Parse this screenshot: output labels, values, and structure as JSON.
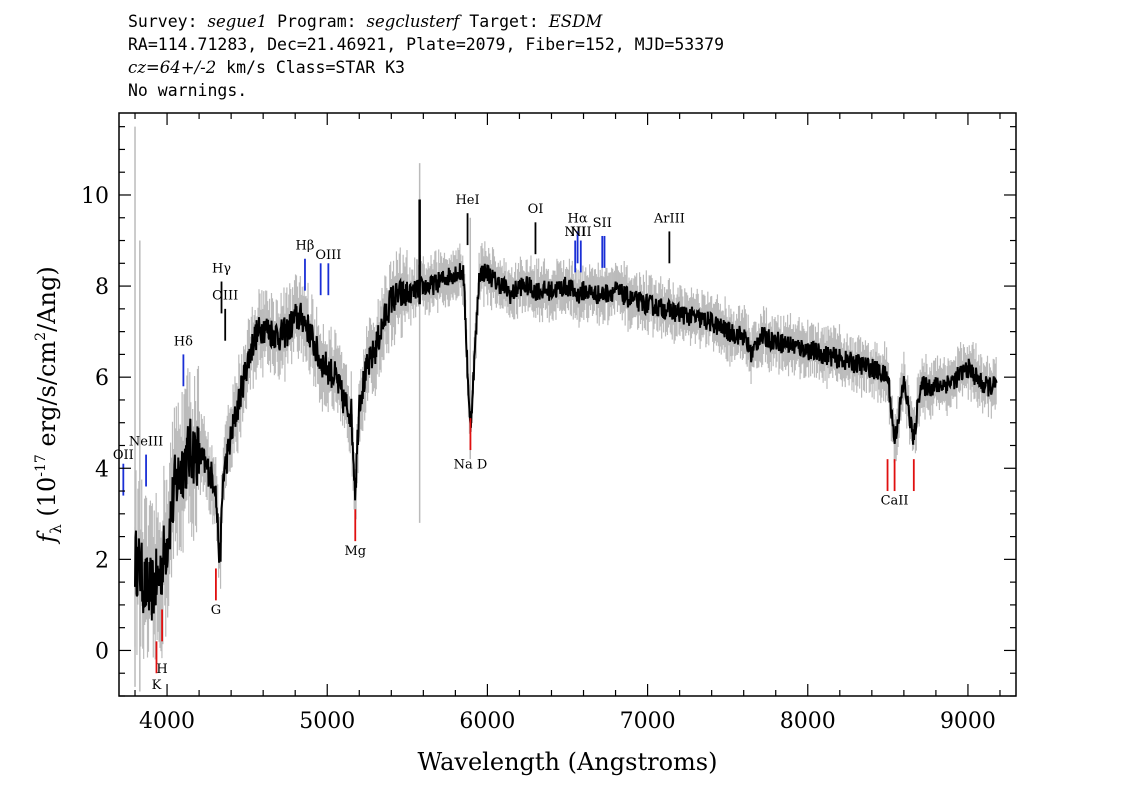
{
  "header": {
    "survey_label": "Survey:",
    "survey": "segue1",
    "program_label": "Program:",
    "program": "segclusterf",
    "target_label": "Target:",
    "target": "ESDM",
    "line2": "RA=114.71283, Dec=21.46921, Plate=2079, Fiber=152, MJD=53379",
    "cz_label": "cz=64+/-2",
    "line3_rest": "km/s Class=STAR K3",
    "line4": "No warnings."
  },
  "chart_data": {
    "type": "line",
    "title": "",
    "xlabel": "Wavelength (Angstroms)",
    "ylabel": "f_λ (10^-17 erg/s/cm^2/Ang)",
    "ylabel_parts": {
      "f": "f",
      "sub": "λ",
      "pre": " (10",
      "exp": "-17",
      "mid": " erg/s/cm",
      "exp2": "2",
      "post": "/Ang)"
    },
    "xlim": [
      3700,
      9300
    ],
    "ylim": [
      -1.0,
      11.8
    ],
    "xticks": [
      4000,
      5000,
      6000,
      7000,
      8000,
      9000
    ],
    "yticks": [
      0,
      2,
      4,
      6,
      8,
      10
    ],
    "grid": false,
    "colors": {
      "flux": "#000000",
      "error": "#bbbbbb",
      "emission": "#1a2fd6",
      "absorption": "#e01010",
      "sky": "#000000"
    },
    "spectrum": {
      "x": [
        3800,
        3830,
        3860,
        3900,
        3950,
        4000,
        4050,
        4100,
        4150,
        4200,
        4250,
        4300,
        4330,
        4350,
        4400,
        4450,
        4500,
        4550,
        4600,
        4650,
        4700,
        4750,
        4800,
        4850,
        4900,
        4950,
        5000,
        5050,
        5100,
        5150,
        5175,
        5200,
        5250,
        5300,
        5350,
        5400,
        5450,
        5500,
        5550,
        5600,
        5650,
        5700,
        5750,
        5800,
        5850,
        5893,
        5950,
        6000,
        6050,
        6100,
        6150,
        6200,
        6250,
        6300,
        6400,
        6500,
        6563,
        6600,
        6700,
        6800,
        6900,
        7000,
        7100,
        7200,
        7300,
        7400,
        7500,
        7600,
        7650,
        7700,
        7800,
        7900,
        8000,
        8100,
        8200,
        8300,
        8400,
        8500,
        8542,
        8600,
        8662,
        8700,
        8800,
        8900,
        9000,
        9100,
        9180
      ],
      "y": [
        2.0,
        1.8,
        1.4,
        1.3,
        1.6,
        2.4,
        3.6,
        4.1,
        4.4,
        4.3,
        4.0,
        3.7,
        1.9,
        3.8,
        4.7,
        5.5,
        6.3,
        6.9,
        7.1,
        7.0,
        6.9,
        7.0,
        7.3,
        7.3,
        6.9,
        6.4,
        6.2,
        6.0,
        5.5,
        5.2,
        3.5,
        5.5,
        6.2,
        6.6,
        7.2,
        7.7,
        7.8,
        7.8,
        7.9,
        8.0,
        8.0,
        8.1,
        8.2,
        8.3,
        8.3,
        4.8,
        8.3,
        8.3,
        8.1,
        8.0,
        7.8,
        8.0,
        8.0,
        7.9,
        7.9,
        8.0,
        7.8,
        7.9,
        7.8,
        7.9,
        7.7,
        7.6,
        7.5,
        7.4,
        7.3,
        7.2,
        7.0,
        6.9,
        6.5,
        6.9,
        6.8,
        6.7,
        6.6,
        6.5,
        6.4,
        6.3,
        6.2,
        6.0,
        4.6,
        5.9,
        4.6,
        5.8,
        5.8,
        5.9,
        6.2,
        5.8,
        5.8
      ]
    },
    "lines": [
      {
        "label": "OII",
        "x": 3727,
        "kind": "emission",
        "y0": 3.4,
        "y1": 4.1,
        "label_y": 4.2
      },
      {
        "label": "NeIII",
        "x": 3869,
        "kind": "emission",
        "y0": 3.6,
        "y1": 4.3,
        "label_y": 4.5
      },
      {
        "label": "Hδ",
        "x": 4102,
        "kind": "emission",
        "y0": 5.8,
        "y1": 6.5,
        "label_y": 6.7
      },
      {
        "label": "Hγ",
        "x": 4340,
        "kind": "sky",
        "y0": 7.4,
        "y1": 8.1,
        "label_y": 8.3
      },
      {
        "label": "OIII",
        "x": 4363,
        "kind": "sky",
        "y0": 6.8,
        "y1": 7.5,
        "label_y": 7.7
      },
      {
        "label": "Hβ",
        "x": 4861,
        "kind": "emission",
        "y0": 7.9,
        "y1": 8.6,
        "label_y": 8.8
      },
      {
        "label": "OIII",
        "x": 4959,
        "kind": "emission",
        "y0": 7.8,
        "y1": 8.5,
        "label_y": 8.6
      },
      {
        "label": "OIII",
        "x": 5007,
        "kind": "emission",
        "y0": 7.8,
        "y1": 8.5,
        "label_y": 8.6
      },
      {
        "label": "HeI",
        "x": 5876,
        "kind": "sky",
        "y0": 8.9,
        "y1": 9.6,
        "label_y": 9.8
      },
      {
        "label": "OI",
        "x": 6300,
        "kind": "sky",
        "y0": 8.7,
        "y1": 9.4,
        "label_y": 9.6
      },
      {
        "label": "NII",
        "x": 6548,
        "kind": "emission",
        "y0": 8.3,
        "y1": 9.0,
        "label_y": 9.1
      },
      {
        "label": "Hα",
        "x": 6563,
        "kind": "emission",
        "y0": 8.5,
        "y1": 9.2,
        "label_y": 9.4
      },
      {
        "label": "NII",
        "x": 6583,
        "kind": "emission",
        "y0": 8.3,
        "y1": 9.0,
        "label_y": 9.1
      },
      {
        "label": "SII",
        "x": 6717,
        "kind": "emission",
        "y0": 8.4,
        "y1": 9.1,
        "label_y": 9.3
      },
      {
        "label": "SII",
        "x": 6731,
        "kind": "emission",
        "y0": 8.4,
        "y1": 9.1,
        "label_y": 9.3
      },
      {
        "label": "ArIII",
        "x": 7136,
        "kind": "sky",
        "y0": 8.5,
        "y1": 9.2,
        "label_y": 9.4
      },
      {
        "label": "K",
        "x": 3934,
        "kind": "absorption",
        "y0": -0.5,
        "y1": 0.2,
        "label_y": -0.85
      },
      {
        "label": "H",
        "x": 3969,
        "kind": "absorption",
        "y0": 0.2,
        "y1": 0.9,
        "label_y": -0.5
      },
      {
        "label": "G",
        "x": 4305,
        "kind": "absorption",
        "y0": 1.1,
        "y1": 1.8,
        "label_y": 0.8
      },
      {
        "label": "Mg",
        "x": 5175,
        "kind": "absorption",
        "y0": 2.4,
        "y1": 3.1,
        "label_y": 2.1
      },
      {
        "label": "Na D",
        "x": 5894,
        "kind": "absorption",
        "y0": 4.4,
        "y1": 5.1,
        "label_y": 4.0
      },
      {
        "label": "CaII",
        "x": 8498,
        "kind": "absorption",
        "y0": 3.5,
        "y1": 4.2,
        "label_y": 3.2
      },
      {
        "label": "CaII",
        "x": 8542,
        "kind": "absorption",
        "y0": 3.5,
        "y1": 4.2,
        "label_y": 3.2
      },
      {
        "label": "CaII",
        "x": 8662,
        "kind": "absorption",
        "y0": 3.5,
        "y1": 4.2,
        "label_y": 3.2
      }
    ]
  }
}
